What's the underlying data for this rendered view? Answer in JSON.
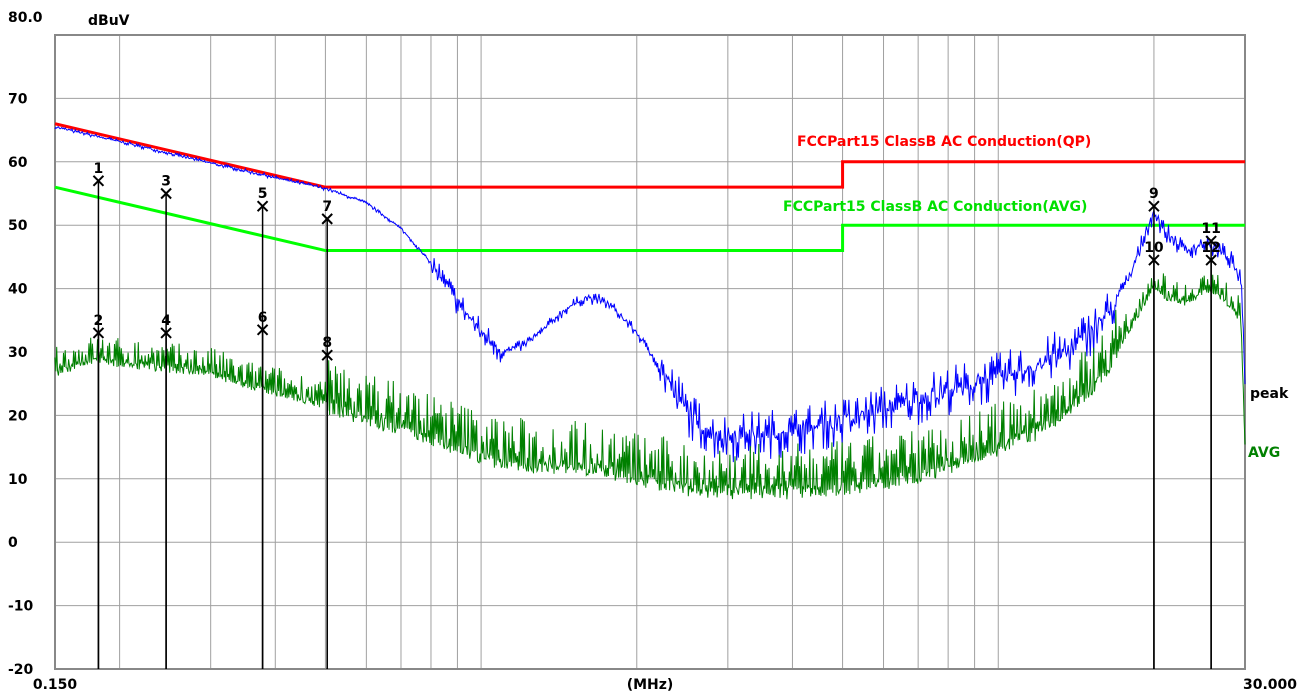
{
  "chart_data": {
    "type": "line",
    "x_scale": "log",
    "xlim": [
      0.15,
      30
    ],
    "ylim": [
      -20,
      80
    ],
    "grid": true,
    "ylabel": "dBuV",
    "xlabel": "(MHz)",
    "x_tick_labels": [
      {
        "value": 0.15,
        "label": "0.150"
      },
      {
        "value": 30,
        "label": "30.000"
      }
    ],
    "y_tick_labels": [
      {
        "value": 80,
        "label": "80.0"
      },
      {
        "value": 70,
        "label": "70"
      },
      {
        "value": 60,
        "label": "60"
      },
      {
        "value": 50,
        "label": "50"
      },
      {
        "value": 40,
        "label": "40"
      },
      {
        "value": 30,
        "label": "30"
      },
      {
        "value": 20,
        "label": "20"
      },
      {
        "value": 10,
        "label": "10"
      },
      {
        "value": 0,
        "label": "0"
      },
      {
        "value": -10,
        "label": "-10"
      },
      {
        "value": -20,
        "label": "-20"
      }
    ],
    "limits": [
      {
        "name": "FCCPart15 ClassB AC Conduction(QP)",
        "color": "#ff0000",
        "points": [
          [
            0.15,
            66
          ],
          [
            0.5,
            56
          ],
          [
            5,
            56
          ],
          [
            5,
            60
          ],
          [
            30,
            60
          ]
        ]
      },
      {
        "name": "FCCPart15 ClassB AC Conduction(AVG)",
        "color": "#00ff00",
        "points": [
          [
            0.15,
            56
          ],
          [
            0.5,
            46
          ],
          [
            5,
            46
          ],
          [
            5,
            50
          ],
          [
            30,
            50
          ]
        ]
      }
    ],
    "series": [
      {
        "name": "peak",
        "color": "#0000ff",
        "points": [
          [
            0.15,
            65.5
          ],
          [
            0.2,
            63.2
          ],
          [
            0.3,
            59.8
          ],
          [
            0.4,
            57.5
          ],
          [
            0.5,
            55.8
          ],
          [
            0.6,
            53.5
          ],
          [
            0.7,
            49.5
          ],
          [
            0.8,
            44
          ],
          [
            0.9,
            38
          ],
          [
            1.0,
            33
          ],
          [
            1.1,
            30
          ],
          [
            1.2,
            31
          ],
          [
            1.3,
            33
          ],
          [
            1.4,
            35.5
          ],
          [
            1.5,
            37.5
          ],
          [
            1.6,
            38.5
          ],
          [
            1.7,
            38.2
          ],
          [
            1.8,
            37
          ],
          [
            2.0,
            33
          ],
          [
            2.2,
            28
          ],
          [
            2.4,
            23
          ],
          [
            2.6,
            19
          ],
          [
            2.8,
            17
          ],
          [
            3.0,
            16.5
          ],
          [
            3.5,
            17
          ],
          [
            4.0,
            17.5
          ],
          [
            5.0,
            19
          ],
          [
            6.0,
            21
          ],
          [
            7.0,
            22.5
          ],
          [
            8.0,
            24
          ],
          [
            10.0,
            26
          ],
          [
            12.0,
            28
          ],
          [
            14.0,
            31
          ],
          [
            16.0,
            35
          ],
          [
            18.0,
            42
          ],
          [
            19.5,
            50
          ],
          [
            20.0,
            52
          ],
          [
            21.0,
            49
          ],
          [
            23.0,
            46
          ],
          [
            25.0,
            47
          ],
          [
            27.0,
            46
          ],
          [
            28.5,
            44
          ],
          [
            29.5,
            41
          ],
          [
            30.0,
            25
          ]
        ]
      },
      {
        "name": "AVG",
        "color": "#008000",
        "points": [
          [
            0.15,
            27
          ],
          [
            0.18,
            29
          ],
          [
            0.2,
            28.5
          ],
          [
            0.3,
            27
          ],
          [
            0.35,
            25
          ],
          [
            0.4,
            24
          ],
          [
            0.5,
            22
          ],
          [
            0.6,
            20
          ],
          [
            0.8,
            17
          ],
          [
            1.0,
            14
          ],
          [
            1.1,
            13
          ],
          [
            1.3,
            12.5
          ],
          [
            1.5,
            12.5
          ],
          [
            1.7,
            12
          ],
          [
            2.0,
            10.5
          ],
          [
            2.5,
            9
          ],
          [
            3.0,
            8.5
          ],
          [
            4.0,
            8.5
          ],
          [
            5.0,
            9
          ],
          [
            6.0,
            10
          ],
          [
            7.0,
            11
          ],
          [
            8.0,
            12.5
          ],
          [
            10.0,
            15
          ],
          [
            12.0,
            18
          ],
          [
            14.0,
            22
          ],
          [
            16.0,
            27
          ],
          [
            18.0,
            34
          ],
          [
            19.5,
            39
          ],
          [
            20.0,
            41
          ],
          [
            21.0,
            39
          ],
          [
            23.0,
            38
          ],
          [
            25.0,
            40
          ],
          [
            27.0,
            39
          ],
          [
            28.5,
            37
          ],
          [
            29.5,
            35
          ],
          [
            30.0,
            15
          ]
        ]
      }
    ],
    "markers": [
      {
        "label": "1",
        "freq": 0.182,
        "level": 57
      },
      {
        "label": "2",
        "freq": 0.182,
        "level": 33
      },
      {
        "label": "3",
        "freq": 0.246,
        "level": 55
      },
      {
        "label": "4",
        "freq": 0.246,
        "level": 33
      },
      {
        "label": "5",
        "freq": 0.378,
        "level": 53
      },
      {
        "label": "6",
        "freq": 0.378,
        "level": 33.5
      },
      {
        "label": "7",
        "freq": 0.504,
        "level": 51
      },
      {
        "label": "8",
        "freq": 0.504,
        "level": 29.5
      },
      {
        "label": "9",
        "freq": 20.0,
        "level": 53
      },
      {
        "label": "10",
        "freq": 20.0,
        "level": 44.5
      },
      {
        "label": "11",
        "freq": 25.8,
        "level": 47.5
      },
      {
        "label": "12",
        "freq": 25.8,
        "level": 44.5
      }
    ]
  }
}
